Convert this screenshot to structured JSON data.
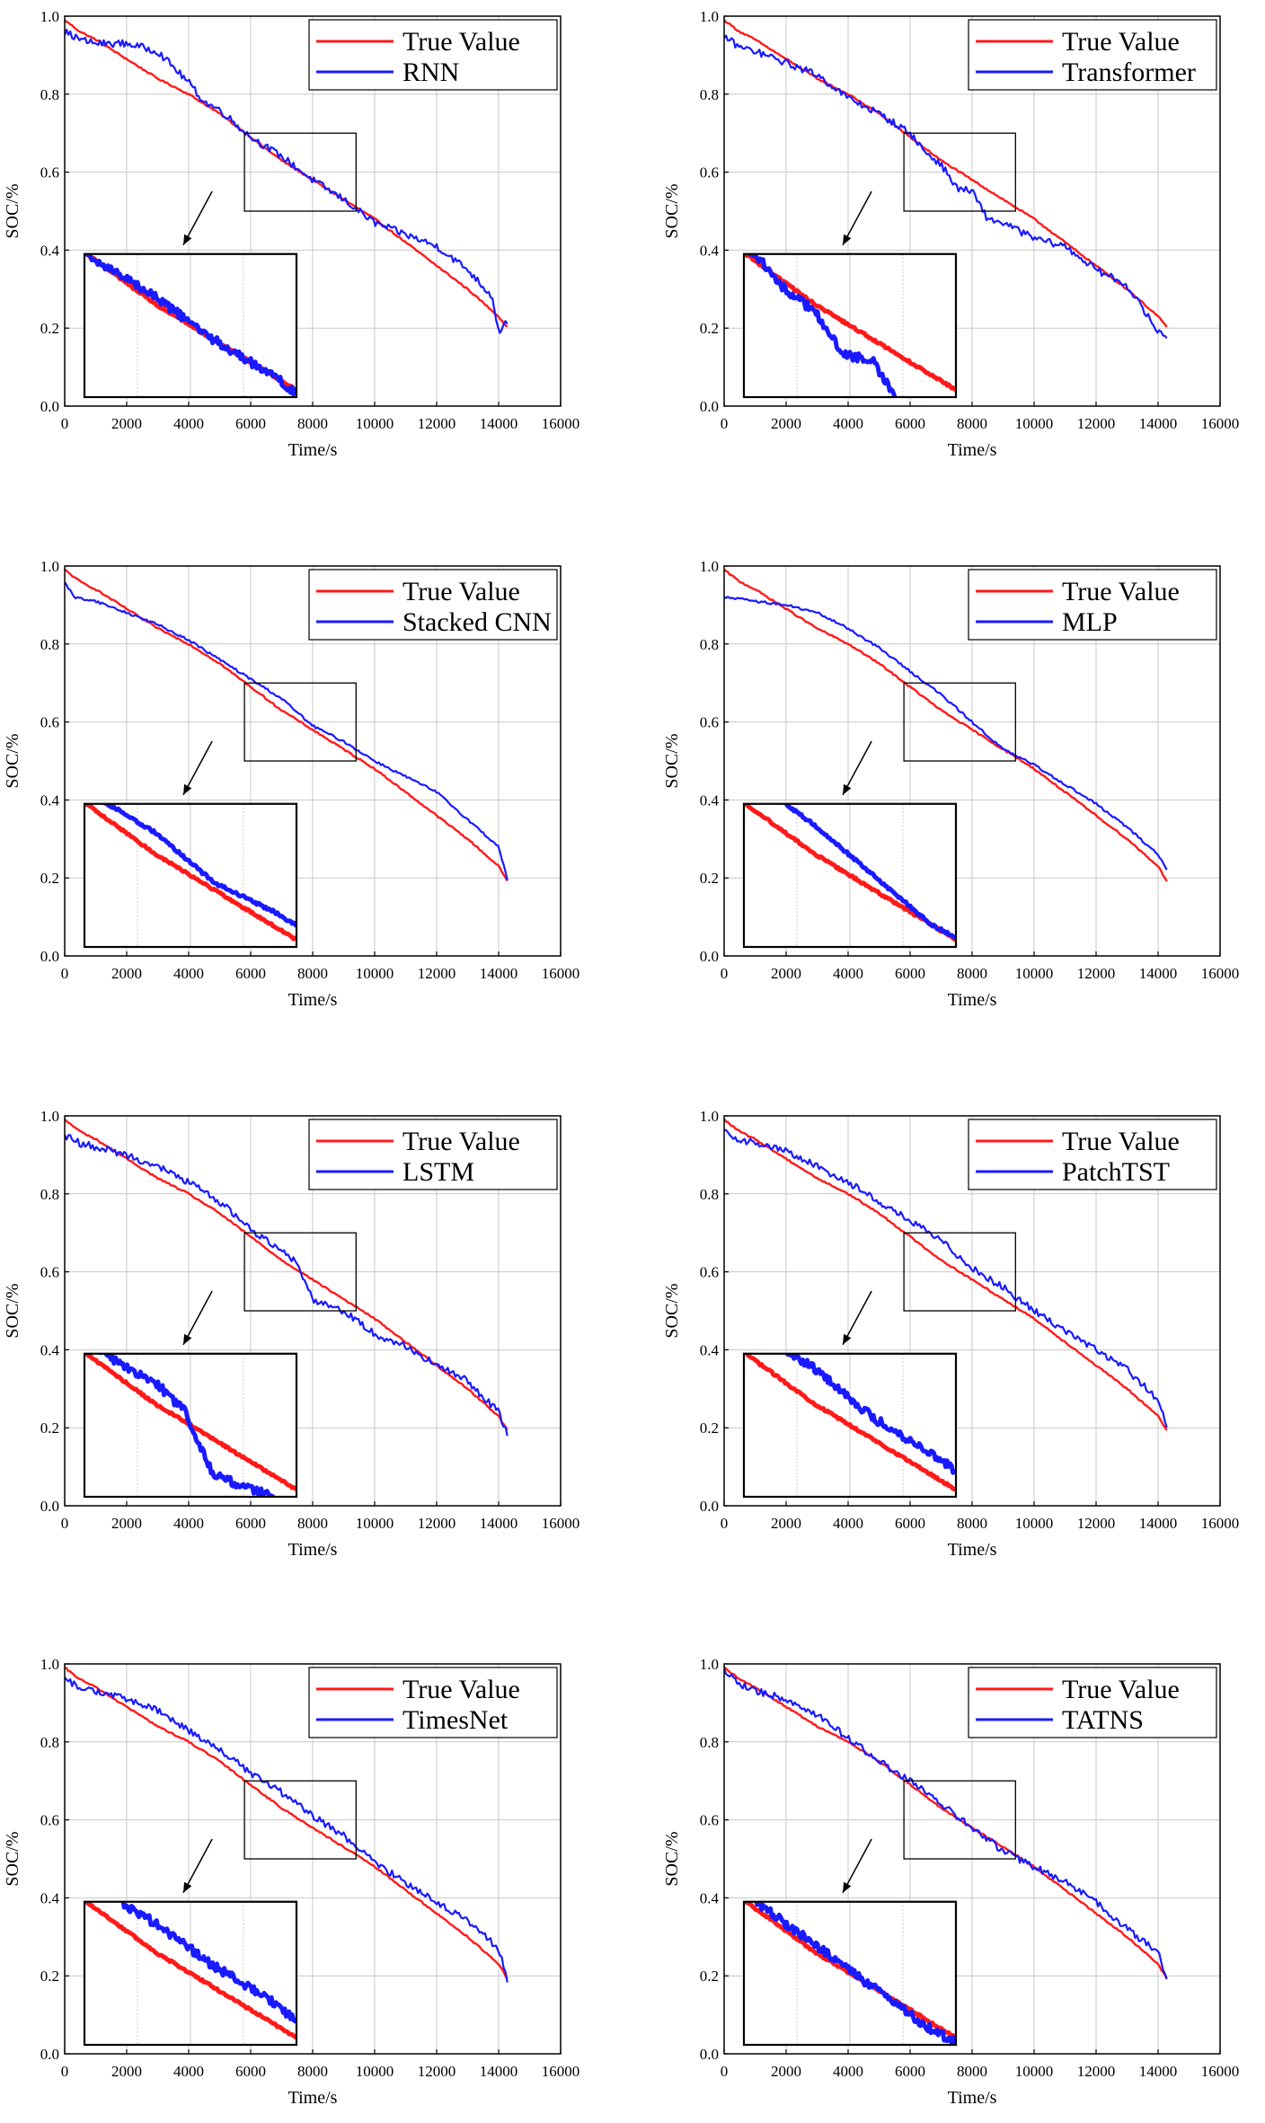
{
  "colors": {
    "true_value": "#ff1a1a",
    "prediction": "#1a1aff",
    "grid": "#c8c8c8",
    "axis": "#000000"
  },
  "chart_data": [
    {
      "type": "line",
      "xlabel": "Time/s",
      "ylabel": "SOC/%",
      "xlim": [
        0,
        16000
      ],
      "ylim": [
        0,
        1.0
      ],
      "xticks": [
        "0",
        "2000",
        "4000",
        "6000",
        "8000",
        "10000",
        "12000",
        "14000",
        "16000"
      ],
      "yticks": [
        "0.0",
        "0.2",
        "0.4",
        "0.6",
        "0.8",
        "1.0"
      ],
      "legend_location": "top-right",
      "series": [
        {
          "name": "True Value",
          "x": [
            0,
            500,
            1000,
            2000,
            3000,
            4000,
            5000,
            6000,
            7000,
            8000,
            9000,
            10000,
            11000,
            12000,
            13000,
            14000,
            14300
          ],
          "y": [
            0.99,
            0.96,
            0.94,
            0.89,
            0.84,
            0.8,
            0.75,
            0.69,
            0.63,
            0.58,
            0.53,
            0.48,
            0.42,
            0.36,
            0.3,
            0.23,
            0.2
          ]
        },
        {
          "name": "RNN",
          "x": [
            0,
            500,
            1000,
            2000,
            3000,
            4000,
            4500,
            5000,
            6000,
            7000,
            8000,
            9000,
            10000,
            11000,
            12000,
            13000,
            13800,
            14000,
            14300
          ],
          "y": [
            0.96,
            0.94,
            0.93,
            0.93,
            0.91,
            0.83,
            0.78,
            0.76,
            0.69,
            0.64,
            0.58,
            0.53,
            0.47,
            0.44,
            0.41,
            0.35,
            0.28,
            0.19,
            0.22
          ]
        }
      ],
      "zoom_box": {
        "x": [
          5800,
          9400
        ],
        "y": [
          0.5,
          0.7
        ]
      }
    },
    {
      "type": "line",
      "xlabel": "Time/s",
      "ylabel": "SOC/%",
      "xlim": [
        0,
        16000
      ],
      "ylim": [
        0,
        1.0
      ],
      "xticks": [
        "0",
        "2000",
        "4000",
        "6000",
        "8000",
        "10000",
        "12000",
        "14000",
        "16000"
      ],
      "yticks": [
        "0.0",
        "0.2",
        "0.4",
        "0.6",
        "0.8",
        "1.0"
      ],
      "legend_location": "top-right",
      "series": [
        {
          "name": "True Value",
          "x": [
            0,
            500,
            1000,
            2000,
            3000,
            4000,
            5000,
            6000,
            7000,
            8000,
            9000,
            10000,
            11000,
            12000,
            13000,
            14000,
            14300
          ],
          "y": [
            0.99,
            0.96,
            0.94,
            0.89,
            0.84,
            0.8,
            0.75,
            0.69,
            0.63,
            0.58,
            0.53,
            0.48,
            0.42,
            0.36,
            0.3,
            0.23,
            0.2
          ]
        },
        {
          "name": "Transformer",
          "x": [
            0,
            500,
            1000,
            2000,
            3000,
            4000,
            5000,
            6000,
            6500,
            7000,
            7500,
            8000,
            8500,
            9000,
            10000,
            11000,
            12000,
            13000,
            14000,
            14300
          ],
          "y": [
            0.95,
            0.92,
            0.91,
            0.88,
            0.85,
            0.79,
            0.75,
            0.7,
            0.65,
            0.62,
            0.56,
            0.55,
            0.48,
            0.47,
            0.43,
            0.41,
            0.35,
            0.31,
            0.19,
            0.18
          ]
        }
      ],
      "zoom_box": {
        "x": [
          5800,
          9400
        ],
        "y": [
          0.5,
          0.7
        ]
      }
    },
    {
      "type": "line",
      "xlabel": "Time/s",
      "ylabel": "SOC/%",
      "xlim": [
        0,
        16000
      ],
      "ylim": [
        0,
        1.0
      ],
      "xticks": [
        "0",
        "2000",
        "4000",
        "6000",
        "8000",
        "10000",
        "12000",
        "14000",
        "16000"
      ],
      "yticks": [
        "0.0",
        "0.2",
        "0.4",
        "0.6",
        "0.8",
        "1.0"
      ],
      "legend_location": "top-right",
      "series": [
        {
          "name": "True Value",
          "x": [
            0,
            500,
            1000,
            2000,
            3000,
            4000,
            5000,
            6000,
            7000,
            8000,
            9000,
            10000,
            11000,
            12000,
            13000,
            14000,
            14300
          ],
          "y": [
            0.99,
            0.96,
            0.94,
            0.89,
            0.84,
            0.8,
            0.75,
            0.69,
            0.63,
            0.58,
            0.53,
            0.48,
            0.42,
            0.36,
            0.3,
            0.23,
            0.19
          ]
        },
        {
          "name": "Stacked CNN",
          "x": [
            0,
            300,
            1000,
            2000,
            3000,
            4000,
            5000,
            6000,
            7000,
            8000,
            9000,
            10000,
            11000,
            12000,
            13000,
            14000,
            14300
          ],
          "y": [
            0.96,
            0.92,
            0.91,
            0.88,
            0.85,
            0.81,
            0.76,
            0.71,
            0.66,
            0.59,
            0.55,
            0.5,
            0.46,
            0.42,
            0.35,
            0.28,
            0.19
          ]
        }
      ],
      "zoom_box": {
        "x": [
          5800,
          9400
        ],
        "y": [
          0.5,
          0.7
        ]
      }
    },
    {
      "type": "line",
      "xlabel": "Time/s",
      "ylabel": "SOC/%",
      "xlim": [
        0,
        16000
      ],
      "ylim": [
        0,
        1.0
      ],
      "xticks": [
        "0",
        "2000",
        "4000",
        "6000",
        "8000",
        "10000",
        "12000",
        "14000",
        "16000"
      ],
      "yticks": [
        "0.0",
        "0.2",
        "0.4",
        "0.6",
        "0.8",
        "1.0"
      ],
      "legend_location": "top-right",
      "series": [
        {
          "name": "True Value",
          "x": [
            0,
            500,
            1000,
            2000,
            3000,
            4000,
            5000,
            6000,
            7000,
            8000,
            9000,
            10000,
            11000,
            12000,
            13000,
            14000,
            14300
          ],
          "y": [
            0.99,
            0.96,
            0.94,
            0.89,
            0.84,
            0.8,
            0.75,
            0.69,
            0.63,
            0.58,
            0.53,
            0.48,
            0.42,
            0.36,
            0.3,
            0.23,
            0.19
          ]
        },
        {
          "name": "MLP",
          "x": [
            0,
            1000,
            2000,
            3000,
            4000,
            5000,
            6000,
            7000,
            8000,
            9000,
            10000,
            11000,
            12000,
            13000,
            14000,
            14300
          ],
          "y": [
            0.92,
            0.91,
            0.9,
            0.88,
            0.84,
            0.79,
            0.73,
            0.67,
            0.6,
            0.53,
            0.49,
            0.44,
            0.39,
            0.33,
            0.26,
            0.22
          ]
        }
      ],
      "zoom_box": {
        "x": [
          5800,
          9400
        ],
        "y": [
          0.5,
          0.7
        ]
      }
    },
    {
      "type": "line",
      "xlabel": "Time/s",
      "ylabel": "SOC/%",
      "xlim": [
        0,
        16000
      ],
      "ylim": [
        0,
        1.0
      ],
      "xticks": [
        "0",
        "2000",
        "4000",
        "6000",
        "8000",
        "10000",
        "12000",
        "14000",
        "16000"
      ],
      "yticks": [
        "0.0",
        "0.2",
        "0.4",
        "0.6",
        "0.8",
        "1.0"
      ],
      "legend_location": "top-right",
      "series": [
        {
          "name": "True Value",
          "x": [
            0,
            500,
            1000,
            2000,
            3000,
            4000,
            5000,
            6000,
            7000,
            8000,
            9000,
            10000,
            11000,
            12000,
            13000,
            14000,
            14300
          ],
          "y": [
            0.99,
            0.96,
            0.94,
            0.89,
            0.84,
            0.8,
            0.75,
            0.69,
            0.63,
            0.58,
            0.53,
            0.48,
            0.42,
            0.36,
            0.3,
            0.23,
            0.19
          ]
        },
        {
          "name": "LSTM",
          "x": [
            0,
            500,
            1000,
            2000,
            3000,
            4000,
            5000,
            6000,
            6500,
            7000,
            7500,
            8000,
            9000,
            10000,
            11000,
            12000,
            13000,
            14000,
            14300
          ],
          "y": [
            0.95,
            0.93,
            0.92,
            0.9,
            0.87,
            0.83,
            0.78,
            0.71,
            0.68,
            0.66,
            0.62,
            0.53,
            0.5,
            0.44,
            0.41,
            0.36,
            0.32,
            0.24,
            0.18
          ]
        }
      ],
      "zoom_box": {
        "x": [
          5800,
          9400
        ],
        "y": [
          0.5,
          0.7
        ]
      }
    },
    {
      "type": "line",
      "xlabel": "Time/s",
      "ylabel": "SOC/%",
      "xlim": [
        0,
        16000
      ],
      "ylim": [
        0,
        1.0
      ],
      "xticks": [
        "0",
        "2000",
        "4000",
        "6000",
        "8000",
        "10000",
        "12000",
        "14000",
        "16000"
      ],
      "yticks": [
        "0.0",
        "0.2",
        "0.4",
        "0.6",
        "0.8",
        "1.0"
      ],
      "legend_location": "top-right",
      "series": [
        {
          "name": "True Value",
          "x": [
            0,
            500,
            1000,
            2000,
            3000,
            4000,
            5000,
            6000,
            7000,
            8000,
            9000,
            10000,
            11000,
            12000,
            13000,
            14000,
            14300
          ],
          "y": [
            0.99,
            0.96,
            0.94,
            0.89,
            0.84,
            0.8,
            0.75,
            0.69,
            0.63,
            0.58,
            0.53,
            0.48,
            0.42,
            0.36,
            0.3,
            0.23,
            0.19
          ]
        },
        {
          "name": "PatchTST",
          "x": [
            0,
            500,
            1000,
            2000,
            3000,
            4000,
            5000,
            6000,
            7000,
            8000,
            9000,
            10000,
            11000,
            12000,
            13000,
            14000,
            14300
          ],
          "y": [
            0.96,
            0.94,
            0.93,
            0.91,
            0.87,
            0.83,
            0.78,
            0.73,
            0.68,
            0.61,
            0.56,
            0.5,
            0.45,
            0.4,
            0.35,
            0.27,
            0.2
          ]
        }
      ],
      "zoom_box": {
        "x": [
          5800,
          9400
        ],
        "y": [
          0.5,
          0.7
        ]
      }
    },
    {
      "type": "line",
      "xlabel": "Time/s",
      "ylabel": "SOC/%",
      "xlim": [
        0,
        16000
      ],
      "ylim": [
        0,
        1.0
      ],
      "xticks": [
        "0",
        "2000",
        "4000",
        "6000",
        "8000",
        "10000",
        "12000",
        "14000",
        "16000"
      ],
      "yticks": [
        "0.0",
        "0.2",
        "0.4",
        "0.6",
        "0.8",
        "1.0"
      ],
      "legend_location": "top-right",
      "series": [
        {
          "name": "True Value",
          "x": [
            0,
            500,
            1000,
            2000,
            3000,
            4000,
            5000,
            6000,
            7000,
            8000,
            9000,
            10000,
            11000,
            12000,
            13000,
            14000,
            14300
          ],
          "y": [
            0.99,
            0.96,
            0.94,
            0.89,
            0.84,
            0.8,
            0.75,
            0.69,
            0.63,
            0.58,
            0.53,
            0.48,
            0.42,
            0.36,
            0.3,
            0.23,
            0.19
          ]
        },
        {
          "name": "TimesNet",
          "x": [
            0,
            500,
            1000,
            2000,
            3000,
            4000,
            5000,
            6000,
            7000,
            8000,
            9000,
            10000,
            11000,
            12000,
            13000,
            14000,
            14300
          ],
          "y": [
            0.96,
            0.94,
            0.93,
            0.91,
            0.88,
            0.83,
            0.78,
            0.72,
            0.67,
            0.61,
            0.56,
            0.49,
            0.44,
            0.39,
            0.34,
            0.27,
            0.18
          ]
        }
      ],
      "zoom_box": {
        "x": [
          5800,
          9400
        ],
        "y": [
          0.5,
          0.7
        ]
      }
    },
    {
      "type": "line",
      "xlabel": "Time/s",
      "ylabel": "SOC/%",
      "xlim": [
        0,
        16000
      ],
      "ylim": [
        0,
        1.0
      ],
      "xticks": [
        "0",
        "2000",
        "4000",
        "6000",
        "8000",
        "10000",
        "12000",
        "14000",
        "16000"
      ],
      "yticks": [
        "0.0",
        "0.2",
        "0.4",
        "0.6",
        "0.8",
        "1.0"
      ],
      "legend_location": "top-right",
      "series": [
        {
          "name": "True Value",
          "x": [
            0,
            500,
            1000,
            2000,
            3000,
            4000,
            5000,
            6000,
            7000,
            8000,
            9000,
            10000,
            11000,
            12000,
            13000,
            14000,
            14300
          ],
          "y": [
            0.99,
            0.96,
            0.94,
            0.89,
            0.84,
            0.8,
            0.75,
            0.69,
            0.63,
            0.58,
            0.53,
            0.48,
            0.42,
            0.36,
            0.3,
            0.23,
            0.19
          ]
        },
        {
          "name": "TATNS",
          "x": [
            0,
            500,
            1000,
            2000,
            3000,
            4000,
            5000,
            6000,
            7000,
            8000,
            9000,
            10000,
            11000,
            12000,
            13000,
            14000,
            14300
          ],
          "y": [
            0.98,
            0.95,
            0.93,
            0.91,
            0.87,
            0.81,
            0.75,
            0.7,
            0.64,
            0.58,
            0.52,
            0.48,
            0.44,
            0.39,
            0.32,
            0.26,
            0.19
          ]
        }
      ],
      "zoom_box": {
        "x": [
          5800,
          9400
        ],
        "y": [
          0.5,
          0.7
        ]
      }
    }
  ]
}
